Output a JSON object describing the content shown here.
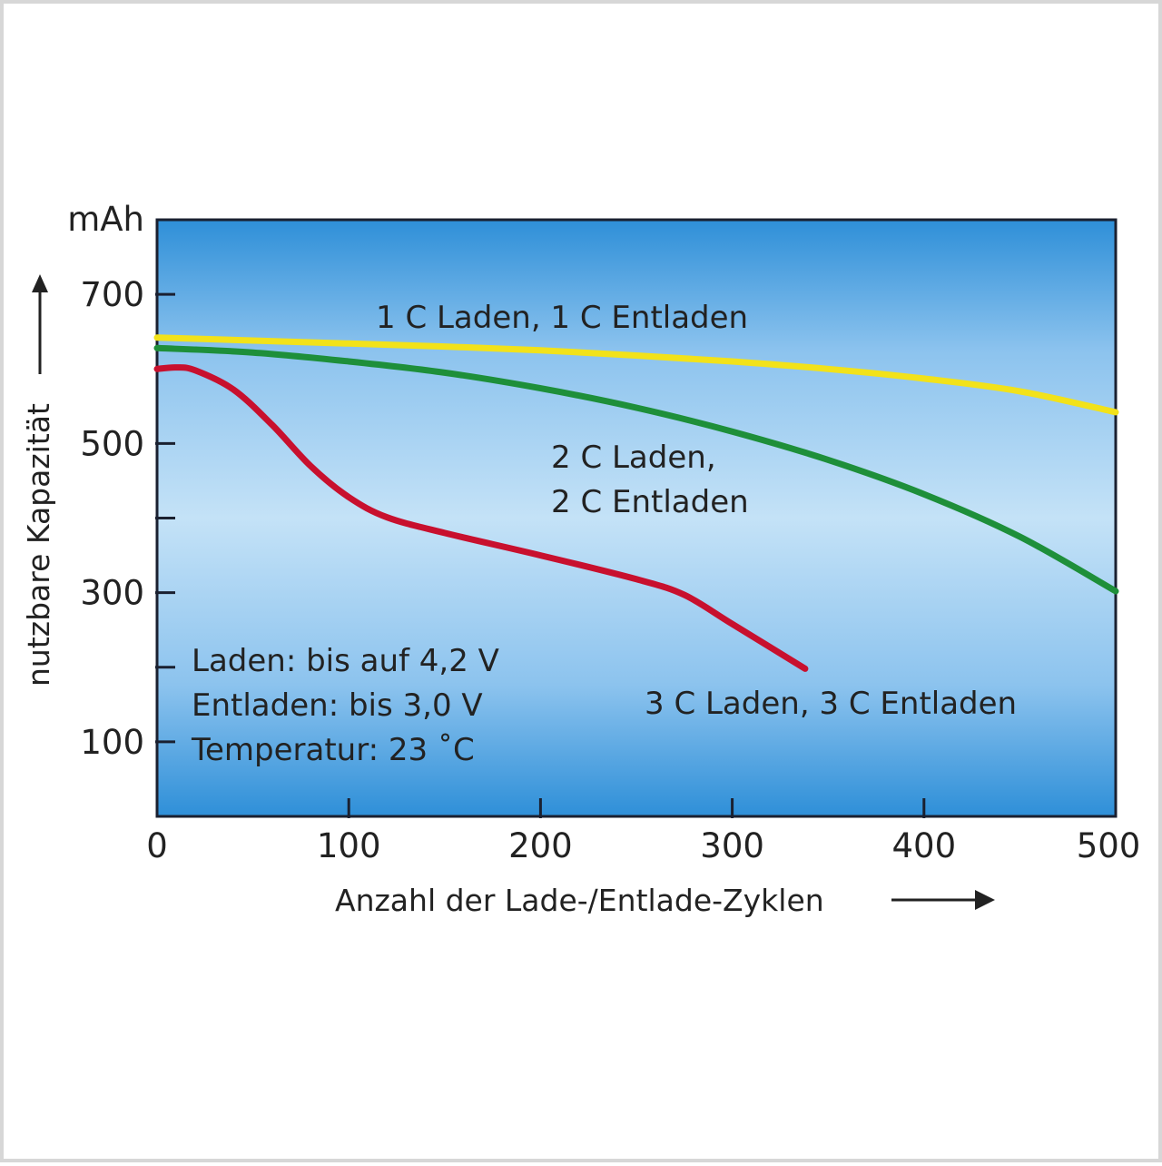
{
  "chart_data": {
    "type": "line",
    "ylabel": "nutzbare Kapazität",
    "yunit": "mAh",
    "xlabel": "Anzahl der Lade-/Entlade-Zyklen",
    "xlim": [
      0,
      500
    ],
    "ylim": [
      0,
      800
    ],
    "xticks": [
      0,
      100,
      200,
      300,
      400,
      500
    ],
    "xtick_labels": [
      "0",
      "100",
      "200",
      "300",
      "400",
      "500"
    ],
    "yticks": [
      100,
      200,
      300,
      400,
      500,
      600,
      700
    ],
    "ytick_labels": [
      "100",
      "",
      "300",
      "",
      "500",
      "",
      "700"
    ],
    "grid": false,
    "background": "blue gradient",
    "series": [
      {
        "name": "1 C Laden, 1 C Entladen",
        "color": "#f2e21a",
        "points": [
          [
            0,
            642
          ],
          [
            50,
            638
          ],
          [
            100,
            634
          ],
          [
            150,
            630
          ],
          [
            200,
            625
          ],
          [
            250,
            618
          ],
          [
            300,
            610
          ],
          [
            350,
            600
          ],
          [
            400,
            587
          ],
          [
            450,
            570
          ],
          [
            500,
            542
          ]
        ]
      },
      {
        "name": "2 C Laden, 2 C Entladen",
        "color": "#1e8f3a",
        "points": [
          [
            0,
            628
          ],
          [
            50,
            622
          ],
          [
            100,
            610
          ],
          [
            150,
            595
          ],
          [
            200,
            574
          ],
          [
            250,
            548
          ],
          [
            300,
            516
          ],
          [
            350,
            478
          ],
          [
            400,
            432
          ],
          [
            450,
            375
          ],
          [
            500,
            302
          ]
        ]
      },
      {
        "name": "3 C  Laden, 3 C Entladen",
        "color": "#c8102e",
        "points": [
          [
            0,
            600
          ],
          [
            10,
            602
          ],
          [
            20,
            598
          ],
          [
            40,
            572
          ],
          [
            60,
            525
          ],
          [
            80,
            470
          ],
          [
            100,
            428
          ],
          [
            120,
            401
          ],
          [
            150,
            380
          ],
          [
            200,
            350
          ],
          [
            250,
            318
          ],
          [
            275,
            297
          ],
          [
            300,
            258
          ],
          [
            338,
            198
          ]
        ]
      }
    ],
    "annotations": [
      "Laden: bis auf 4,2 V",
      "Entladen: bis 3,0 V",
      "Temperatur: 23 ˚C"
    ]
  }
}
